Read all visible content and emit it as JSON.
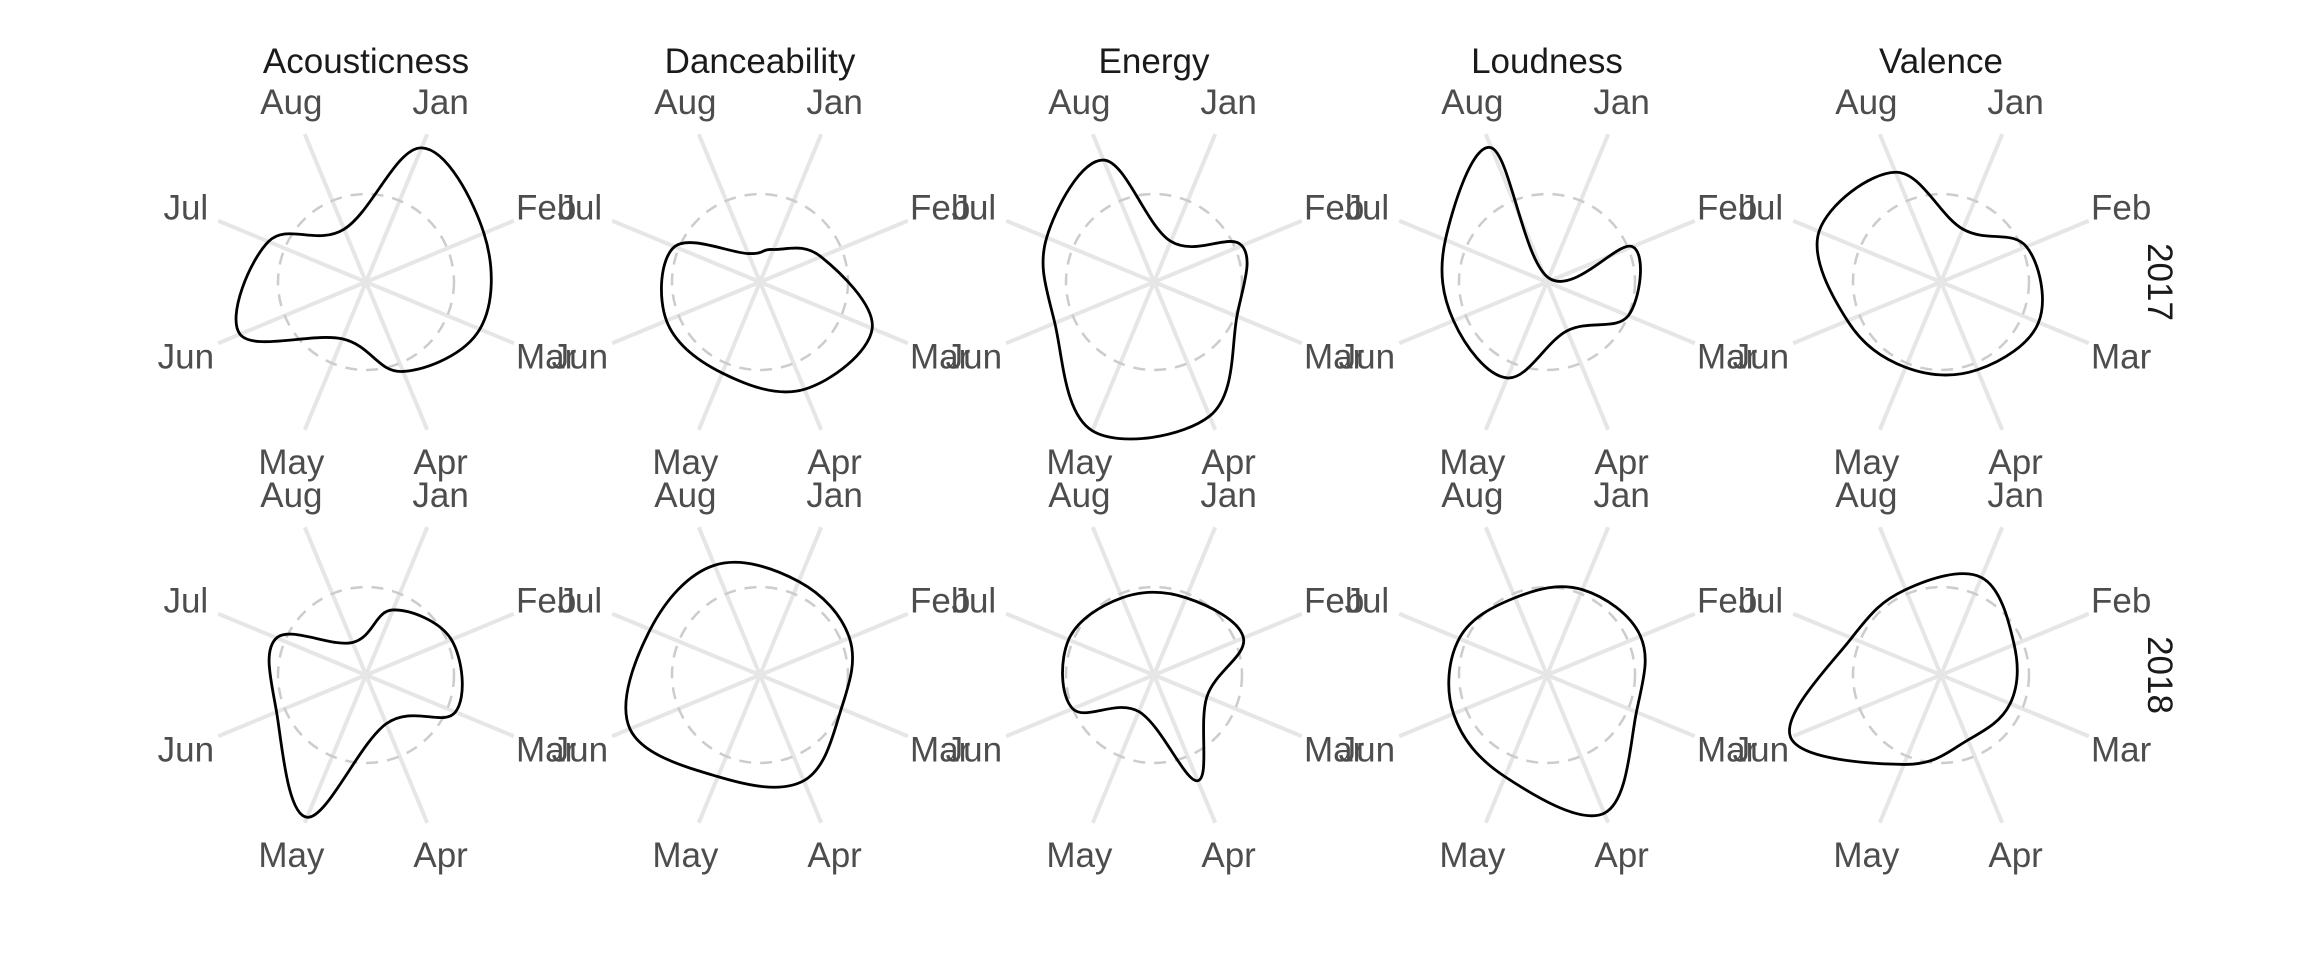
{
  "chart_data": {
    "type": "radar",
    "facet_columns": [
      "Acousticness",
      "Danceability",
      "Energy",
      "Loudness",
      "Valence"
    ],
    "facet_rows": [
      "2017",
      "2018"
    ],
    "months": [
      "Jan",
      "Feb",
      "Mar",
      "Apr",
      "May",
      "Jun",
      "Jul",
      "Aug"
    ],
    "reference_circle": 1.0,
    "grid": "radial spokes + dashed reference circle",
    "panels": [
      {
        "row": "2017",
        "column": "Acousticness",
        "values": [
          1.65,
          1.45,
          1.4,
          1.1,
          0.7,
          1.55,
          1.2,
          0.65
        ]
      },
      {
        "row": "2017",
        "column": "Danceability",
        "values": [
          0.4,
          0.75,
          1.38,
          1.32,
          1.12,
          1.15,
          1.05,
          0.35
        ]
      },
      {
        "row": "2017",
        "column": "Energy",
        "values": [
          0.5,
          1.08,
          1.02,
          1.65,
          1.83,
          1.22,
          1.32,
          1.5
        ]
      },
      {
        "row": "2017",
        "column": "Loudness",
        "values": [
          0.05,
          1.05,
          1.0,
          0.6,
          1.18,
          1.15,
          1.25,
          1.65
        ]
      },
      {
        "row": "2017",
        "column": "Valence",
        "values": [
          0.65,
          1.05,
          1.2,
          1.08,
          1.05,
          1.15,
          1.5,
          1.35
        ]
      },
      {
        "row": "2018",
        "column": "Acousticness",
        "values": [
          0.8,
          1.05,
          1.1,
          0.6,
          1.75,
          1.1,
          1.1,
          0.4
        ]
      },
      {
        "row": "2018",
        "column": "Danceability",
        "values": [
          1.15,
          1.1,
          1.0,
          1.3,
          1.25,
          1.6,
          1.35,
          1.35
        ]
      },
      {
        "row": "2018",
        "column": "Energy",
        "values": [
          0.95,
          1.1,
          0.65,
          1.3,
          0.45,
          1.0,
          1.05,
          0.95
        ]
      },
      {
        "row": "2018",
        "column": "Loudness",
        "values": [
          1.05,
          1.15,
          1.1,
          1.7,
          1.25,
          1.15,
          1.08,
          0.95
        ]
      },
      {
        "row": "2018",
        "column": "Valence",
        "values": [
          1.2,
          0.9,
          0.85,
          0.8,
          1.1,
          1.85,
          1.1,
          1.05
        ]
      }
    ]
  }
}
